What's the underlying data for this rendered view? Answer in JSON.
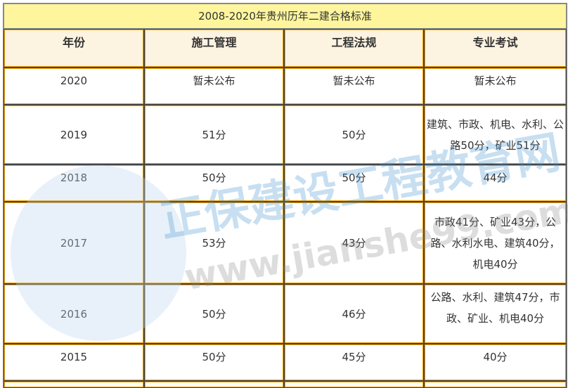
{
  "table": {
    "title": "2008-2020年贵州历年二建合格标准",
    "headers": [
      "年份",
      "施工管理",
      "工程法规",
      "专业考试"
    ],
    "rows": [
      [
        "2020",
        "暂未公布",
        "暂未公布",
        "暂未公布"
      ],
      [
        "2019",
        "51分",
        "50分",
        "建筑、市政、机电、水利、公路50分，矿业51分"
      ],
      [
        "2018",
        "50分",
        "50分",
        "44分"
      ],
      [
        "2017",
        "53分",
        "43分",
        "市政41分、矿业43分，公路、水利水电、建筑40分，机电40分"
      ],
      [
        "2016",
        "50分",
        "46分",
        "公路、水利、建筑47分，市政、矿业、机电40分"
      ],
      [
        "2015",
        "50分",
        "45分",
        "40分"
      ]
    ]
  },
  "watermark": {
    "logo_text": "正保建设工程教育网",
    "url_text": "www.jianshe99.com"
  },
  "colors": {
    "title_bg": "#fff59d",
    "header_bg": "#fdf3e1",
    "border_accent": "#f5a000"
  }
}
